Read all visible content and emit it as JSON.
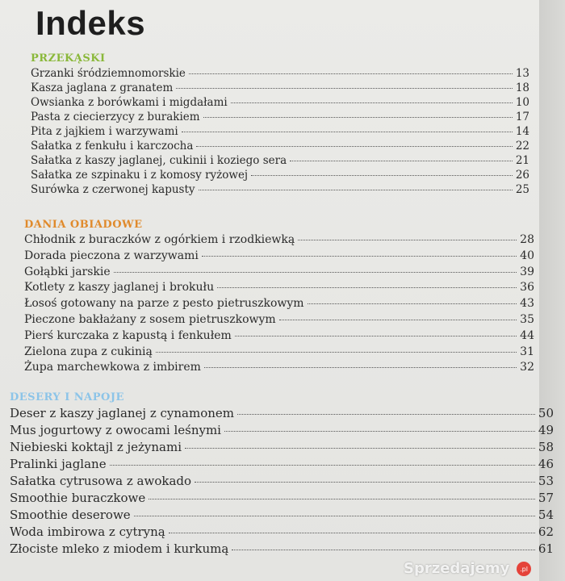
{
  "title": "Indeks",
  "colors": {
    "przekaski": "#8ab83a",
    "dania": "#e08a2c",
    "desery": "#8cc4e8"
  },
  "sections": [
    {
      "heading": "PRZEKĄSKI",
      "items": [
        {
          "label": "Grzanki śródziemnomorskie",
          "page": "13"
        },
        {
          "label": "Kasza jaglana z granatem",
          "page": "18"
        },
        {
          "label": "Owsianka z borówkami i migdałami",
          "page": "10"
        },
        {
          "label": "Pasta z ciecierzycy z burakiem",
          "page": "17"
        },
        {
          "label": "Pita z jajkiem i warzywami",
          "page": "14"
        },
        {
          "label": "Sałatka z fenkułu i karczocha",
          "page": "22"
        },
        {
          "label": "Sałatka z kaszy jaglanej, cukinii i koziego sera",
          "page": "21"
        },
        {
          "label": "Sałatka ze szpinaku i z komosy ryżowej",
          "page": "26"
        },
        {
          "label": "Surówka z czerwonej kapusty",
          "page": "25"
        }
      ]
    },
    {
      "heading": "DANIA OBIADOWE",
      "items": [
        {
          "label": "Chłodnik z buraczków z ogórkiem i rzodkiewką",
          "page": "28"
        },
        {
          "label": "Dorada pieczona z warzywami",
          "page": "40"
        },
        {
          "label": "Gołąbki jarskie",
          "page": "39"
        },
        {
          "label": "Kotlety z kaszy jaglanej i brokułu",
          "page": "36"
        },
        {
          "label": "Łosoś gotowany na parze z pesto pietruszkowym",
          "page": "43"
        },
        {
          "label": "Pieczone bakłażany z sosem pietruszkowym",
          "page": "35"
        },
        {
          "label": "Pierś kurczaka z kapustą i fenkułem",
          "page": "44"
        },
        {
          "label": "Zielona zupa z cukinią",
          "page": "31"
        },
        {
          "label": "Żupa marchewkowa z imbirem",
          "page": "32"
        }
      ]
    },
    {
      "heading": "DESERY I NAPOJE",
      "items": [
        {
          "label": "Deser z kaszy jaglanej z cynamonem",
          "page": "50"
        },
        {
          "label": "Mus jogurtowy z owocami leśnymi",
          "page": "49"
        },
        {
          "label": "Niebieski koktajl z jeżynami",
          "page": "58"
        },
        {
          "label": "Pralinki jaglane",
          "page": "46"
        },
        {
          "label": "Sałatka cytrusowa z awokado",
          "page": "53"
        },
        {
          "label": "Smoothie buraczkowe",
          "page": "57"
        },
        {
          "label": "Smoothie deserowe",
          "page": "54"
        },
        {
          "label": "Woda imbirowa z cytryną",
          "page": "62"
        },
        {
          "label": "Złociste mleko z miodem i kurkumą",
          "page": "61"
        }
      ]
    }
  ],
  "watermark": {
    "text": "Sprzedajemy",
    "badge": ".pl"
  }
}
